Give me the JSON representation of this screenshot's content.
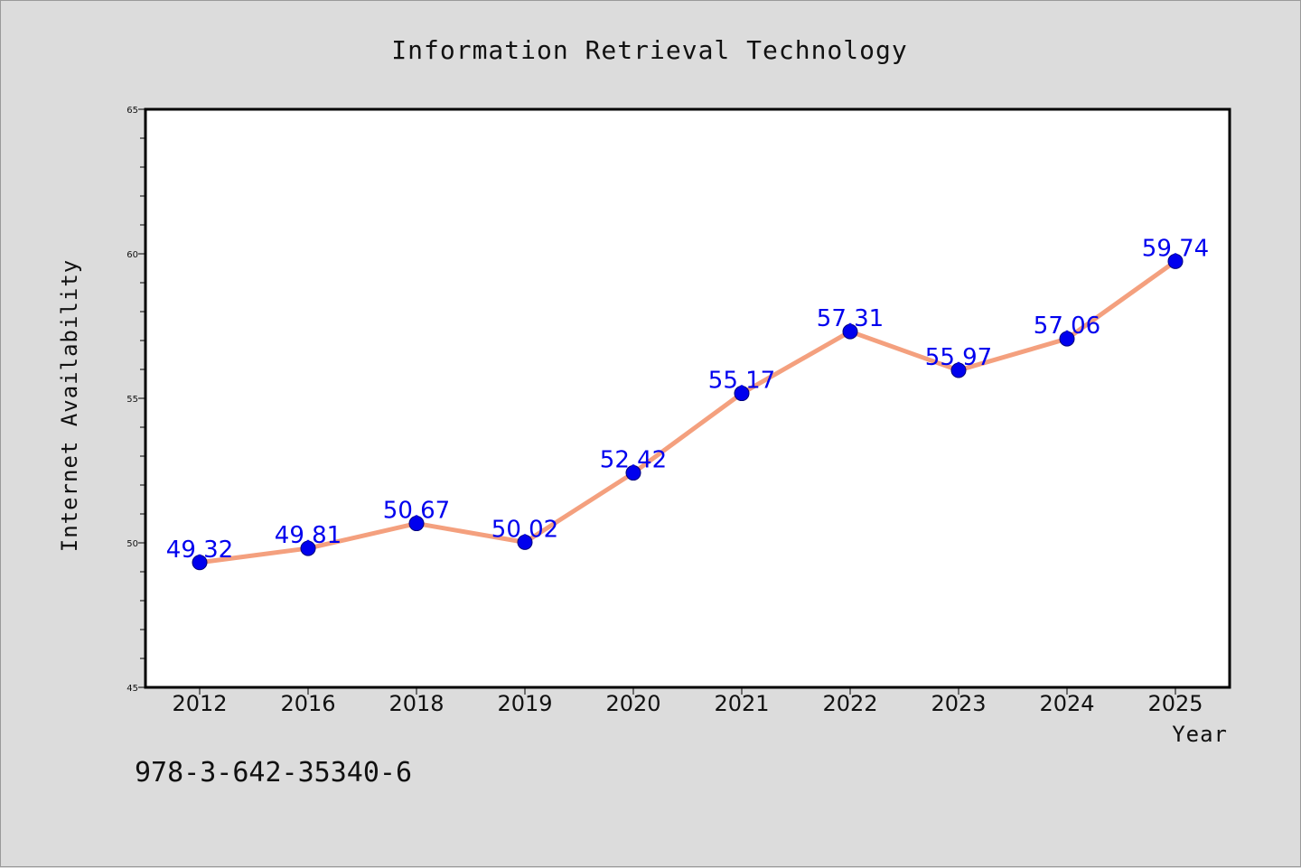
{
  "chart_data": {
    "type": "line",
    "title": "Information Retrieval Technology",
    "xlabel": "Year",
    "ylabel": "Internet Availability",
    "categories": [
      "2012",
      "2016",
      "2018",
      "2019",
      "2020",
      "2021",
      "2022",
      "2023",
      "2024",
      "2025"
    ],
    "series": [
      {
        "values": [
          49.32,
          49.81,
          50.67,
          50.02,
          52.42,
          55.17,
          57.31,
          55.97,
          57.06,
          59.74
        ]
      }
    ],
    "data_labels": [
      "49.32",
      "49.81",
      "50.67",
      "50.02",
      "52.42",
      "55.17",
      "57.31",
      "55.97",
      "57.06",
      "59.74"
    ],
    "ylim": [
      45,
      65
    ],
    "yticks": [
      45,
      50,
      55,
      60,
      65
    ],
    "grid": false,
    "line_color": "#f4a07e",
    "marker_color": "#0000ee",
    "label_color": "#0000ee",
    "background_color": "#dcdcdc",
    "plot_background_color": "#ffffff"
  },
  "footnote": "978-3-642-35340-6"
}
